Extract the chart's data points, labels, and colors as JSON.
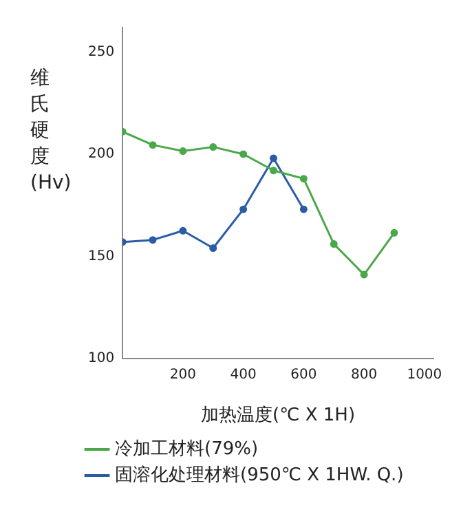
{
  "chart_data": {
    "type": "line",
    "ylabel": "维氏硬度(Hv)",
    "xlabel": "加热温度(℃ X 1H)",
    "xlim": [
      0,
      1030
    ],
    "xticks": [
      200,
      400,
      600,
      800,
      1000
    ],
    "ylim": [
      100,
      262
    ],
    "yticks": [
      100,
      150,
      200,
      250
    ],
    "grid": false,
    "legend": "bottom",
    "marker": "circle",
    "line_style": "solid",
    "series": [
      {
        "name": "冷加工材料(79%)",
        "color": "#4aa84a",
        "x": [
          0,
          100,
          200,
          300,
          400,
          500,
          600,
          700,
          800,
          900
        ],
        "values": [
          211,
          204.5,
          201.5,
          203.5,
          200,
          192,
          188,
          156,
          141,
          161.5
        ]
      },
      {
        "name": "固溶化处理材料(950℃ X 1HW. Q.)",
        "color": "#2a5ca6",
        "x": [
          0,
          100,
          200,
          300,
          400,
          500,
          600
        ],
        "values": [
          157,
          158,
          162.5,
          154,
          173,
          198,
          173
        ]
      }
    ]
  }
}
